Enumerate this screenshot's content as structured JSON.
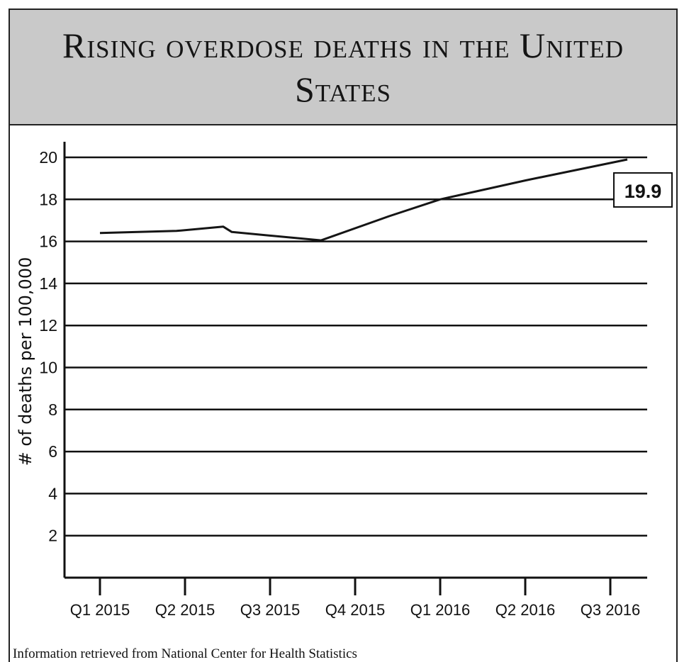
{
  "chart_data": {
    "type": "line",
    "title": "Rising overdose deaths in the United States",
    "ylabel": "# of deaths per 100,000",
    "xlabel": "",
    "ylim": [
      0,
      20
    ],
    "y_ticks": [
      2,
      4,
      6,
      8,
      10,
      12,
      14,
      16,
      18,
      20
    ],
    "categories": [
      "Q1 2015",
      "Q2 2015",
      "Q3 2015",
      "Q4 2015",
      "Q1 2016",
      "Q2 2016",
      "Q3 2016"
    ],
    "grid": true,
    "series": [
      {
        "x": [
          0.0,
          0.9,
          1.45,
          1.55,
          2.6,
          3.4,
          4.0,
          5.0,
          6.2
        ],
        "values": [
          16.4,
          16.5,
          16.7,
          16.45,
          16.05,
          17.2,
          18.0,
          18.9,
          19.9
        ]
      }
    ],
    "callout": {
      "text": "19.9",
      "value": 19.9
    },
    "source": "Information retrieved from National Center for Health Statistics"
  }
}
